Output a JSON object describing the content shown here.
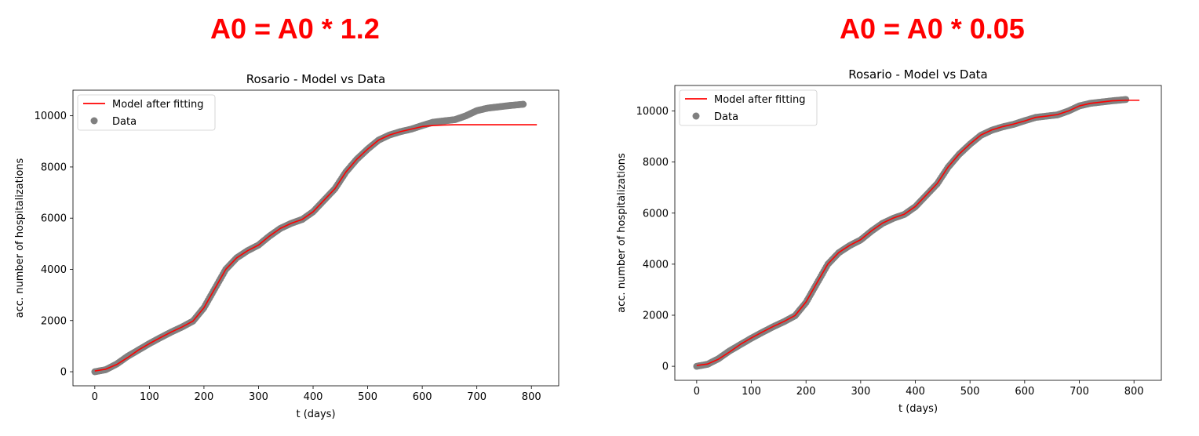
{
  "panels": [
    {
      "heading": "A0 = A0 * 1.2",
      "chart_data": {
        "type": "line",
        "title": "Rosario - Model vs Data",
        "xlabel": "t (days)",
        "ylabel": "acc. number of hospitalizations",
        "xlim": [
          -40,
          850
        ],
        "ylim": [
          -550,
          11000
        ],
        "xticks": [
          0,
          100,
          200,
          300,
          400,
          500,
          600,
          700,
          800
        ],
        "yticks": [
          0,
          2000,
          4000,
          6000,
          8000,
          10000
        ],
        "grid": false,
        "legend_position": "top-left",
        "legend": [
          "Model after fitting",
          "Data"
        ],
        "series": [
          {
            "name": "Model after fitting",
            "kind": "line",
            "color": "#ff0000",
            "x": [
              0,
              20,
              40,
              60,
              80,
              100,
              120,
              140,
              160,
              180,
              200,
              220,
              240,
              260,
              280,
              300,
              320,
              340,
              360,
              380,
              400,
              420,
              440,
              460,
              480,
              500,
              520,
              540,
              560,
              580,
              600,
              620,
              640,
              660,
              700,
              750,
              810
            ],
            "y": [
              30,
              100,
              280,
              550,
              850,
              1100,
              1330,
              1550,
              1750,
              1980,
              2500,
              3250,
              4000,
              4450,
              4730,
              4950,
              5300,
              5600,
              5800,
              5950,
              6250,
              6700,
              7150,
              7800,
              8300,
              8700,
              9050,
              9250,
              9380,
              9480,
              9580,
              9620,
              9640,
              9650,
              9650,
              9650,
              9650
            ]
          },
          {
            "name": "Data",
            "kind": "scatter",
            "color": "#808080",
            "x": [
              0,
              20,
              40,
              60,
              80,
              100,
              120,
              140,
              160,
              180,
              200,
              220,
              240,
              260,
              280,
              300,
              320,
              340,
              360,
              380,
              400,
              420,
              440,
              460,
              480,
              500,
              520,
              540,
              560,
              580,
              600,
              620,
              640,
              660,
              680,
              700,
              720,
              740,
              760,
              785
            ],
            "y": [
              0,
              80,
              300,
              600,
              850,
              1100,
              1330,
              1550,
              1750,
              1980,
              2500,
              3250,
              4000,
              4450,
              4730,
              4950,
              5300,
              5600,
              5800,
              5950,
              6250,
              6700,
              7150,
              7800,
              8300,
              8700,
              9050,
              9250,
              9380,
              9480,
              9620,
              9750,
              9800,
              9850,
              10000,
              10200,
              10300,
              10350,
              10400,
              10450
            ]
          }
        ]
      }
    },
    {
      "heading": "A0 = A0 * 0.05",
      "chart_data": {
        "type": "line",
        "title": "Rosario - Model vs Data",
        "xlabel": "t (days)",
        "ylabel": "acc. number of hospitalizations",
        "xlim": [
          -40,
          850
        ],
        "ylim": [
          -550,
          11000
        ],
        "xticks": [
          0,
          100,
          200,
          300,
          400,
          500,
          600,
          700,
          800
        ],
        "yticks": [
          0,
          2000,
          4000,
          6000,
          8000,
          10000
        ],
        "grid": false,
        "legend_position": "top-left",
        "legend": [
          "Model after fitting",
          "Data"
        ],
        "series": [
          {
            "name": "Model after fitting",
            "kind": "line",
            "color": "#ff0000",
            "x": [
              0,
              20,
              40,
              60,
              80,
              100,
              120,
              140,
              160,
              180,
              200,
              220,
              240,
              260,
              280,
              300,
              320,
              340,
              360,
              380,
              400,
              420,
              440,
              460,
              480,
              500,
              520,
              540,
              560,
              580,
              600,
              620,
              640,
              660,
              680,
              700,
              720,
              740,
              760,
              785,
              810
            ],
            "y": [
              30,
              90,
              280,
              560,
              860,
              1110,
              1340,
              1560,
              1760,
              1990,
              2520,
              3270,
              4010,
              4460,
              4740,
              4960,
              5310,
              5610,
              5810,
              5960,
              6260,
              6710,
              7160,
              7810,
              8310,
              8710,
              9060,
              9260,
              9390,
              9490,
              9610,
              9750,
              9800,
              9860,
              10000,
              10200,
              10300,
              10350,
              10400,
              10420,
              10420
            ]
          },
          {
            "name": "Data",
            "kind": "scatter",
            "color": "#808080",
            "x": [
              0,
              20,
              40,
              60,
              80,
              100,
              120,
              140,
              160,
              180,
              200,
              220,
              240,
              260,
              280,
              300,
              320,
              340,
              360,
              380,
              400,
              420,
              440,
              460,
              480,
              500,
              520,
              540,
              560,
              580,
              600,
              620,
              640,
              660,
              680,
              700,
              720,
              740,
              760,
              785
            ],
            "y": [
              0,
              80,
              300,
              600,
              850,
              1100,
              1330,
              1550,
              1750,
              1980,
              2500,
              3250,
              4000,
              4450,
              4730,
              4950,
              5300,
              5600,
              5800,
              5950,
              6250,
              6700,
              7150,
              7800,
              8300,
              8700,
              9050,
              9250,
              9380,
              9480,
              9620,
              9750,
              9800,
              9850,
              10000,
              10200,
              10300,
              10350,
              10400,
              10450
            ]
          }
        ]
      }
    }
  ]
}
